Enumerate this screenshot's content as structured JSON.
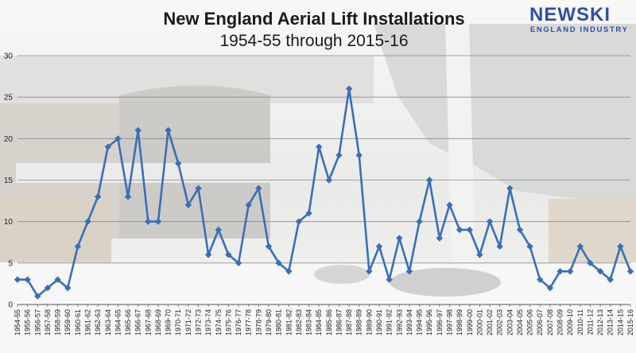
{
  "logo": {
    "main": "NEWSKI",
    "sub": "ENGLAND INDUSTRY"
  },
  "colors": {
    "line": "#3a6fb5",
    "marker": "#3a6fb5",
    "logo": "#2e4fa6"
  },
  "chart_data": {
    "type": "line",
    "title": "New England Aerial Lift Installations",
    "subtitle": "1954-55 through 2015-16",
    "xlabel": "",
    "ylabel": "",
    "ylim": [
      0,
      30
    ],
    "yticks": [
      0,
      5,
      10,
      15,
      20,
      25,
      30
    ],
    "grid": true,
    "legend": "none",
    "marker": "diamond",
    "categories": [
      "1954-55",
      "1955-56",
      "1956-57",
      "1957-58",
      "1958-59",
      "1959-60",
      "1960-61",
      "1961-62",
      "1962-63",
      "1963-64",
      "1964-65",
      "1965-66",
      "1966-67",
      "1967-68",
      "1968-69",
      "1969-70",
      "1970-71",
      "1971-72",
      "1972-73",
      "1973-74",
      "1974-75",
      "1975-76",
      "1976-77",
      "1977-78",
      "1978-79",
      "1979-80",
      "1980-81",
      "1981-82",
      "1982-83",
      "1983-84",
      "1984-85",
      "1985-86",
      "1986-87",
      "1987-88",
      "1988-89",
      "1989-90",
      "1990-91",
      "1991-92",
      "1992-93",
      "1993-94",
      "1994-95",
      "1995-96",
      "1996-97",
      "1997-98",
      "1998-99",
      "1999-00",
      "2000-01",
      "2001-02",
      "2002-03",
      "2003-04",
      "2004-05",
      "2005-06",
      "2006-07",
      "2007-08",
      "2008-09",
      "2009-10",
      "2010-11",
      "2011-12",
      "2012-13",
      "2013-14",
      "2014-15",
      "2015-16"
    ],
    "values": [
      3,
      3,
      1,
      2,
      3,
      2,
      7,
      10,
      13,
      19,
      20,
      13,
      21,
      10,
      10,
      21,
      17,
      12,
      14,
      6,
      9,
      6,
      5,
      12,
      14,
      7,
      5,
      4,
      10,
      11,
      19,
      15,
      18,
      26,
      18,
      4,
      7,
      3,
      8,
      4,
      10,
      15,
      8,
      12,
      9,
      9,
      6,
      10,
      7,
      14,
      9,
      7,
      3,
      2,
      4,
      4,
      7,
      5,
      4,
      3,
      7,
      4
    ]
  }
}
